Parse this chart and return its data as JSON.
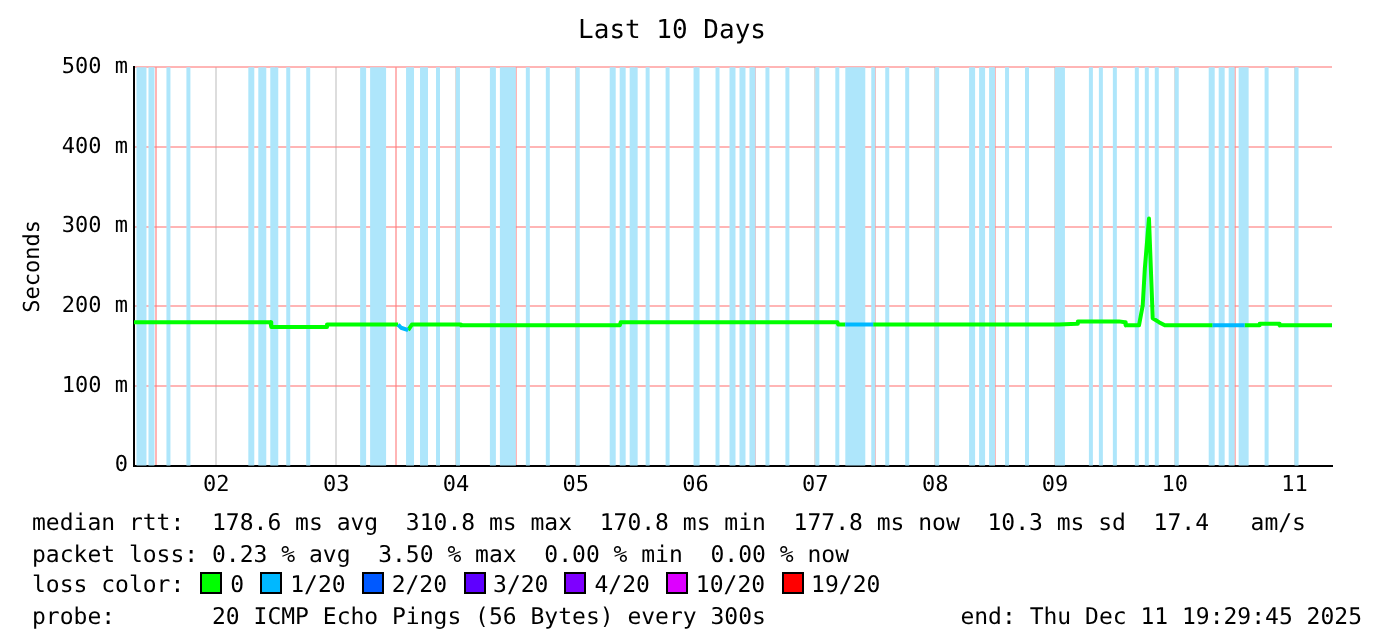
{
  "chart_data": {
    "type": "line",
    "title": "Last 10 Days",
    "ylabel": "Seconds",
    "legend_title": "loss color:",
    "legend": "bottom",
    "grid": true,
    "marker": "none",
    "line_style": "solid",
    "xlim": [
      "2025-12-01T19:30",
      "2025-12-11T19:30"
    ],
    "xticks": [
      {
        "value": "2025-12-02T00:00",
        "label": null
      },
      {
        "value": "2025-12-02T12:00",
        "label": "02"
      },
      {
        "value": "2025-12-03T00:00",
        "label": null
      },
      {
        "value": "2025-12-03T12:00",
        "label": "03"
      },
      {
        "value": "2025-12-04T00:00",
        "label": null
      },
      {
        "value": "2025-12-04T12:00",
        "label": "04"
      },
      {
        "value": "2025-12-05T00:00",
        "label": null
      },
      {
        "value": "2025-12-05T12:00",
        "label": "05"
      },
      {
        "value": "2025-12-06T00:00",
        "label": null
      },
      {
        "value": "2025-12-06T12:00",
        "label": "06"
      },
      {
        "value": "2025-12-07T00:00",
        "label": null
      },
      {
        "value": "2025-12-07T12:00",
        "label": "07"
      },
      {
        "value": "2025-12-08T00:00",
        "label": null
      },
      {
        "value": "2025-12-08T12:00",
        "label": "08"
      },
      {
        "value": "2025-12-09T00:00",
        "label": null
      },
      {
        "value": "2025-12-09T12:00",
        "label": "09"
      },
      {
        "value": "2025-12-10T00:00",
        "label": null
      },
      {
        "value": "2025-12-10T12:00",
        "label": "10"
      },
      {
        "value": "2025-12-11T00:00",
        "label": null
      },
      {
        "value": "2025-12-11T12:00",
        "label": "11"
      }
    ],
    "ylim": [
      0,
      500
    ],
    "yticks": [
      0,
      {
        "value": 100,
        "label": "100 m"
      },
      {
        "value": 200,
        "label": "200 m"
      },
      {
        "value": 300,
        "label": "300 m"
      },
      {
        "value": 400,
        "label": "400 m"
      },
      {
        "value": 500,
        "label": "500 m"
      }
    ],
    "x": [
      "2025-12-01T19:30",
      "2025-12-02T22:50",
      "2025-12-02T23:00",
      "2025-12-03T10:00",
      "2025-12-03T10:10",
      "2025-12-04T00:25",
      "2025-12-04T01:00",
      "2025-12-04T02:25",
      "2025-12-04T03:10",
      "2025-12-04T12:50",
      "2025-12-04T13:00",
      "2025-12-05T20:50",
      "2025-12-05T21:00",
      "2025-12-07T16:25",
      "2025-12-07T16:35",
      "2025-12-07T18:00",
      "2025-12-07T20:00",
      "2025-12-07T23:35",
      "2025-12-09T12:50",
      "2025-12-09T16:25",
      "2025-12-09T16:35",
      "2025-12-10T00:50",
      "2025-12-10T02:00",
      "2025-12-10T02:10",
      "2025-12-10T04:50",
      "2025-12-10T05:35",
      "2025-12-10T06:00",
      "2025-12-10T06:50",
      "2025-12-10T07:35",
      "2025-12-10T08:50",
      "2025-12-10T10:00",
      "2025-12-10T19:35",
      "2025-12-10T22:00",
      "2025-12-11T02:00",
      "2025-12-11T04:50",
      "2025-12-11T05:00",
      "2025-12-11T08:50",
      "2025-12-11T09:00",
      "2025-12-11T19:30"
    ],
    "series": [
      {
        "name": "0",
        "color": "#00ff00",
        "values": [
          180,
          180,
          174,
          174,
          177,
          177,
          null,
          170,
          177,
          177,
          176,
          176,
          180,
          180,
          177,
          177,
          null,
          177,
          177,
          178,
          181,
          181,
          180,
          176,
          176,
          201,
          247,
          310,
          185,
          180,
          176,
          176,
          null,
          176,
          176,
          178,
          178,
          176,
          176
        ]
      },
      {
        "name": "1/20",
        "color": "#00b8ff",
        "values": [
          null,
          null,
          null,
          null,
          null,
          177,
          173,
          170,
          null,
          null,
          null,
          null,
          null,
          null,
          null,
          177,
          177,
          177,
          null,
          null,
          null,
          null,
          null,
          null,
          null,
          null,
          null,
          null,
          null,
          null,
          null,
          176,
          176,
          176,
          null,
          null,
          null,
          null,
          null
        ]
      },
      {
        "name": "2/20",
        "color": "#0059ff",
        "values": [
          null,
          null,
          null,
          null,
          null,
          null,
          null,
          null,
          null,
          null,
          null,
          null,
          null,
          null,
          null,
          null,
          null,
          null,
          null,
          null,
          null,
          null,
          null,
          null,
          null,
          null,
          null,
          null,
          null,
          null,
          null,
          null,
          null,
          null,
          null,
          null,
          null,
          null,
          null
        ]
      },
      {
        "name": "3/20",
        "color": "#5e00ff",
        "values": [
          null,
          null,
          null,
          null,
          null,
          null,
          null,
          null,
          null,
          null,
          null,
          null,
          null,
          null,
          null,
          null,
          null,
          null,
          null,
          null,
          null,
          null,
          null,
          null,
          null,
          null,
          null,
          null,
          null,
          null,
          null,
          null,
          null,
          null,
          null,
          null,
          null,
          null,
          null
        ]
      },
      {
        "name": "4/20",
        "color": "#7e00ff",
        "values": [
          null,
          null,
          null,
          null,
          null,
          null,
          null,
          null,
          null,
          null,
          null,
          null,
          null,
          null,
          null,
          null,
          null,
          null,
          null,
          null,
          null,
          null,
          null,
          null,
          null,
          null,
          null,
          null,
          null,
          null,
          null,
          null,
          null,
          null,
          null,
          null,
          null,
          null,
          null
        ]
      },
      {
        "name": "10/20",
        "color": "#dd00ff",
        "values": [
          null,
          null,
          null,
          null,
          null,
          null,
          null,
          null,
          null,
          null,
          null,
          null,
          null,
          null,
          null,
          null,
          null,
          null,
          null,
          null,
          null,
          null,
          null,
          null,
          null,
          null,
          null,
          null,
          null,
          null,
          null,
          null,
          null,
          null,
          null,
          null,
          null,
          null,
          null
        ]
      },
      {
        "name": "19/20",
        "color": "#ff0000",
        "values": [
          null,
          null,
          null,
          null,
          null,
          null,
          null,
          null,
          null,
          null,
          null,
          null,
          null,
          null,
          null,
          null,
          null,
          null,
          null,
          null,
          null,
          null,
          null,
          null,
          null,
          null,
          null,
          null,
          null,
          null,
          null,
          null,
          null,
          null,
          null,
          null,
          null,
          null,
          null
        ]
      }
    ],
    "bands": [
      {
        "axis": "x",
        "from": "2025-12-01T20:00",
        "to": "2025-12-01T22:00",
        "color": "#aee6fb"
      },
      {
        "axis": "x",
        "from": "2025-12-01T22:24",
        "to": "2025-12-01T23:36",
        "color": "#aee6fb"
      },
      {
        "axis": "x",
        "from": "2025-12-02T02:00",
        "to": "2025-12-02T02:48",
        "color": "#aee6fb"
      },
      {
        "axis": "x",
        "from": "2025-12-02T06:00",
        "to": "2025-12-02T06:48",
        "color": "#aee6fb"
      },
      {
        "axis": "x",
        "from": "2025-12-02T18:24",
        "to": "2025-12-02T19:36",
        "color": "#aee6fb"
      },
      {
        "axis": "x",
        "from": "2025-12-02T20:24",
        "to": "2025-12-02T22:00",
        "color": "#aee6fb"
      },
      {
        "axis": "x",
        "from": "2025-12-02T22:48",
        "to": "2025-12-03T00:24",
        "color": "#aee6fb"
      },
      {
        "axis": "x",
        "from": "2025-12-03T02:00",
        "to": "2025-12-03T02:48",
        "color": "#aee6fb"
      },
      {
        "axis": "x",
        "from": "2025-12-03T06:00",
        "to": "2025-12-03T06:48",
        "color": "#aee6fb"
      },
      {
        "axis": "x",
        "from": "2025-12-03T16:48",
        "to": "2025-12-03T18:00",
        "color": "#aee6fb"
      },
      {
        "axis": "x",
        "from": "2025-12-03T18:48",
        "to": "2025-12-03T22:00",
        "color": "#aee6fb"
      },
      {
        "axis": "x",
        "from": "2025-12-04T02:00",
        "to": "2025-12-04T03:36",
        "color": "#aee6fb"
      },
      {
        "axis": "x",
        "from": "2025-12-04T04:48",
        "to": "2025-12-04T06:24",
        "color": "#aee6fb"
      },
      {
        "axis": "x",
        "from": "2025-12-04T08:00",
        "to": "2025-12-04T08:48",
        "color": "#aee6fb"
      },
      {
        "axis": "x",
        "from": "2025-12-04T12:00",
        "to": "2025-12-04T12:48",
        "color": "#aee6fb"
      },
      {
        "axis": "x",
        "from": "2025-12-04T18:48",
        "to": "2025-12-04T20:00",
        "color": "#aee6fb"
      },
      {
        "axis": "x",
        "from": "2025-12-04T20:48",
        "to": "2025-12-05T00:00",
        "color": "#aee6fb"
      },
      {
        "axis": "x",
        "from": "2025-12-05T02:00",
        "to": "2025-12-05T02:48",
        "color": "#aee6fb"
      },
      {
        "axis": "x",
        "from": "2025-12-05T06:00",
        "to": "2025-12-05T06:48",
        "color": "#aee6fb"
      },
      {
        "axis": "x",
        "from": "2025-12-05T12:00",
        "to": "2025-12-05T12:48",
        "color": "#aee6fb"
      },
      {
        "axis": "x",
        "from": "2025-12-05T18:48",
        "to": "2025-12-05T20:00",
        "color": "#aee6fb"
      },
      {
        "axis": "x",
        "from": "2025-12-05T20:48",
        "to": "2025-12-05T22:00",
        "color": "#aee6fb"
      },
      {
        "axis": "x",
        "from": "2025-12-05T22:48",
        "to": "2025-12-06T00:24",
        "color": "#aee6fb"
      },
      {
        "axis": "x",
        "from": "2025-12-06T02:00",
        "to": "2025-12-06T02:48",
        "color": "#aee6fb"
      },
      {
        "axis": "x",
        "from": "2025-12-06T06:00",
        "to": "2025-12-06T06:48",
        "color": "#aee6fb"
      },
      {
        "axis": "x",
        "from": "2025-12-06T11:36",
        "to": "2025-12-06T12:48",
        "color": "#aee6fb"
      },
      {
        "axis": "x",
        "from": "2025-12-06T16:00",
        "to": "2025-12-06T16:48",
        "color": "#aee6fb"
      },
      {
        "axis": "x",
        "from": "2025-12-06T18:48",
        "to": "2025-12-06T20:00",
        "color": "#aee6fb"
      },
      {
        "axis": "x",
        "from": "2025-12-06T20:48",
        "to": "2025-12-06T22:00",
        "color": "#aee6fb"
      },
      {
        "axis": "x",
        "from": "2025-12-06T22:48",
        "to": "2025-12-07T00:00",
        "color": "#aee6fb"
      },
      {
        "axis": "x",
        "from": "2025-12-07T02:00",
        "to": "2025-12-07T02:48",
        "color": "#aee6fb"
      },
      {
        "axis": "x",
        "from": "2025-12-07T06:00",
        "to": "2025-12-07T06:48",
        "color": "#aee6fb"
      },
      {
        "axis": "x",
        "from": "2025-12-07T12:00",
        "to": "2025-12-07T12:48",
        "color": "#aee6fb"
      },
      {
        "axis": "x",
        "from": "2025-12-07T16:00",
        "to": "2025-12-07T16:48",
        "color": "#aee6fb"
      },
      {
        "axis": "x",
        "from": "2025-12-07T18:00",
        "to": "2025-12-07T22:00",
        "color": "#aee6fb"
      },
      {
        "axis": "x",
        "from": "2025-12-07T23:12",
        "to": "2025-12-08T00:00",
        "color": "#aee6fb"
      },
      {
        "axis": "x",
        "from": "2025-12-08T02:00",
        "to": "2025-12-08T02:48",
        "color": "#aee6fb"
      },
      {
        "axis": "x",
        "from": "2025-12-08T06:00",
        "to": "2025-12-08T06:48",
        "color": "#aee6fb"
      },
      {
        "axis": "x",
        "from": "2025-12-08T12:00",
        "to": "2025-12-08T12:48",
        "color": "#aee6fb"
      },
      {
        "axis": "x",
        "from": "2025-12-08T18:48",
        "to": "2025-12-08T20:00",
        "color": "#aee6fb"
      },
      {
        "axis": "x",
        "from": "2025-12-08T20:48",
        "to": "2025-12-08T22:00",
        "color": "#aee6fb"
      },
      {
        "axis": "x",
        "from": "2025-12-08T22:48",
        "to": "2025-12-09T00:00",
        "color": "#aee6fb"
      },
      {
        "axis": "x",
        "from": "2025-12-09T02:00",
        "to": "2025-12-09T02:48",
        "color": "#aee6fb"
      },
      {
        "axis": "x",
        "from": "2025-12-09T06:00",
        "to": "2025-12-09T06:48",
        "color": "#aee6fb"
      },
      {
        "axis": "x",
        "from": "2025-12-09T12:00",
        "to": "2025-12-09T14:00",
        "color": "#aee6fb"
      },
      {
        "axis": "x",
        "from": "2025-12-09T18:48",
        "to": "2025-12-09T19:36",
        "color": "#aee6fb"
      },
      {
        "axis": "x",
        "from": "2025-12-09T20:48",
        "to": "2025-12-09T21:36",
        "color": "#aee6fb"
      },
      {
        "axis": "x",
        "from": "2025-12-09T23:36",
        "to": "2025-12-10T00:24",
        "color": "#aee6fb"
      },
      {
        "axis": "x",
        "from": "2025-12-10T04:00",
        "to": "2025-12-10T04:48",
        "color": "#aee6fb"
      },
      {
        "axis": "x",
        "from": "2025-12-10T06:00",
        "to": "2025-12-10T06:48",
        "color": "#aee6fb"
      },
      {
        "axis": "x",
        "from": "2025-12-10T08:00",
        "to": "2025-12-10T08:48",
        "color": "#aee6fb"
      },
      {
        "axis": "x",
        "from": "2025-12-10T12:00",
        "to": "2025-12-10T12:48",
        "color": "#aee6fb"
      },
      {
        "axis": "x",
        "from": "2025-12-10T18:48",
        "to": "2025-12-10T20:00",
        "color": "#aee6fb"
      },
      {
        "axis": "x",
        "from": "2025-12-10T20:48",
        "to": "2025-12-10T22:00",
        "color": "#aee6fb"
      },
      {
        "axis": "x",
        "from": "2025-12-10T22:48",
        "to": "2025-12-11T00:00",
        "color": "#aee6fb"
      },
      {
        "axis": "x",
        "from": "2025-12-11T00:48",
        "to": "2025-12-11T02:48",
        "color": "#aee6fb"
      },
      {
        "axis": "x",
        "from": "2025-12-11T06:00",
        "to": "2025-12-11T06:48",
        "color": "#aee6fb"
      },
      {
        "axis": "x",
        "from": "2025-12-11T12:00",
        "to": "2025-12-11T12:48",
        "color": "#aee6fb"
      }
    ],
    "annotations": [
      "median rtt:  178.6 ms avg  310.8 ms max  170.8 ms min  177.8 ms now  10.3 ms sd  17.4   am/s",
      "packet loss: 0.23 % avg  3.50 % max  0.00 % min  0.00 % now",
      "probe:       20 ICMP Echo Pings (56 Bytes) every 300s",
      "end: Thu Dec 11 19:29:45 2025"
    ]
  }
}
